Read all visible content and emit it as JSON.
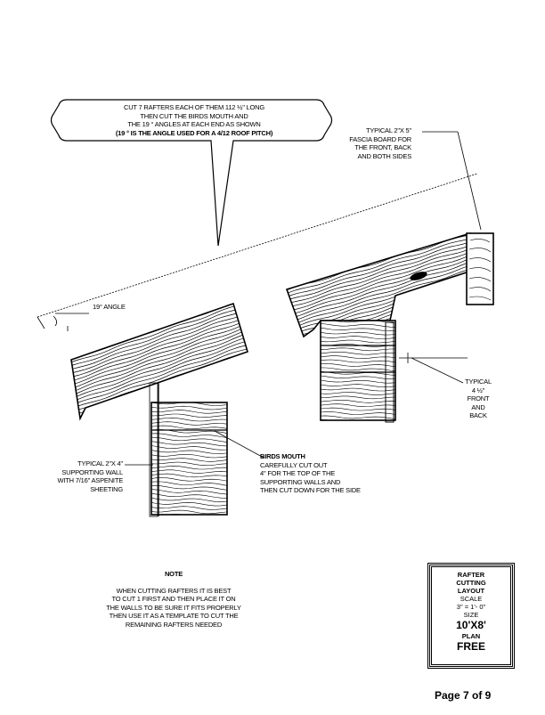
{
  "callout": {
    "line1": "CUT 7 RAFTERS EACH OF THEM  112 ½\"  LONG",
    "line2": "THEN CUT THE BIRDS MOUTH AND",
    "line3": "THE 19 ° ANGLES AT EACH END AS SHOWN",
    "line4": "(19 ° IS THE ANGLE USED FOR A  4/12 ROOF PITCH)"
  },
  "fascia": {
    "line1": "TYPICAL  2\"X 5\"",
    "line2": "FASCIA BOARD FOR",
    "line3": "THE FRONT, BACK",
    "line4": "AND BOTH SIDES"
  },
  "angle_label": "19° ANGLE",
  "typical_side": {
    "line1": "TYPICAL",
    "line2": "4 ½\"",
    "line3": "FRONT",
    "line4": "AND",
    "line5": "BACK"
  },
  "wall": {
    "line1": "TYPICAL 2\"X 4\"",
    "line2": "SUPPORTING WALL",
    "line3": "WITH 7/16\" ASPENITE",
    "line4": "SHEETING"
  },
  "birds_mouth": {
    "title": "BIRDS MOUTH",
    "line1": "CAREFULLY CUT OUT",
    "line2": "4\" FOR THE TOP OF THE",
    "line3": "SUPPORTING WALLS AND",
    "line4": "THEN CUT DOWN FOR THE SIDE"
  },
  "note": {
    "title": "NOTE",
    "line1": "WHEN CUTTING RAFTERS IT IS BEST",
    "line2": "TO CUT 1 FIRST AND THEN PLACE IT ON",
    "line3": "THE WALLS TO BE SURE IT FITS PROPERLY",
    "line4": "THEN USE IT AS A TEMPLATE TO CUT THE",
    "line5": "REMAINING RAFTERS NEEDED"
  },
  "title_block": {
    "line1": "RAFTER",
    "line2": "CUTTING",
    "line3": "LAYOUT",
    "scale_label": "SCALE",
    "scale_value": "3\" = 1'- 0\"",
    "size_label": "SIZE",
    "size_value": "10'X8'",
    "plan_label": "PLAN",
    "price": "FREE"
  },
  "page_number": "Page  7  of  9"
}
